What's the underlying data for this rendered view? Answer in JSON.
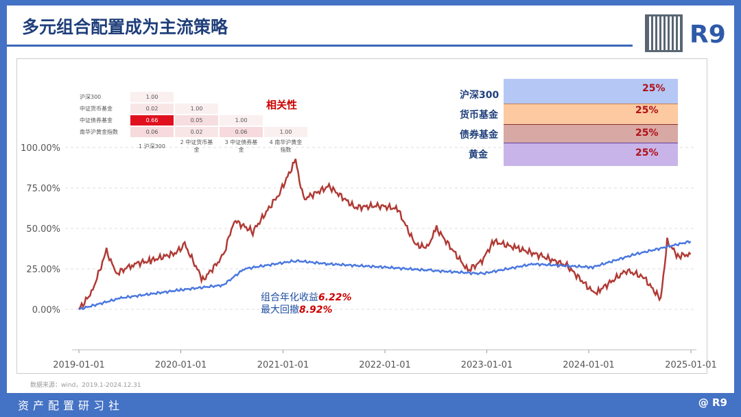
{
  "header": {
    "title": "多元组合配置成为主流策略",
    "logo": "R9"
  },
  "footer": {
    "left": "资产配置研习社",
    "right": "@ R9"
  },
  "source": "数据来源：wind，2019.1-2024.12.31",
  "annotation": {
    "return_label": "组合年化收益",
    "return_value": "6.22%",
    "drawdown_label": "最大回撤",
    "drawdown_value": "8.92%"
  },
  "correlation": {
    "title": "相关性",
    "rows": [
      "沪深300",
      "中证货币基金",
      "中证债券基金",
      "南华沪黄金指数"
    ],
    "cols": [
      "1 沪深300",
      "2 中证货币基金",
      "3 中证债券基金",
      "4 南华沪黄金指数"
    ],
    "values": [
      [
        "1.00",
        "",
        "",
        ""
      ],
      [
        "0.02",
        "1.00",
        "",
        ""
      ],
      [
        "0.66",
        "0.05",
        "1.00",
        ""
      ],
      [
        "0.06",
        "0.02",
        "0.06",
        "1.00"
      ]
    ]
  },
  "allocation": {
    "labels": [
      "沪深300",
      "货币基金",
      "债券基金",
      "黄金"
    ],
    "weights": [
      "25%",
      "25%",
      "25%",
      "25%"
    ],
    "colors": [
      "#b4c7f5",
      "#fcc9a0",
      "#d8a8a4",
      "#c8b4e8"
    ]
  },
  "chart_data": {
    "type": "line",
    "ylim": [
      0,
      100
    ],
    "yticks": [
      "0.00%",
      "25.00%",
      "50.00%",
      "75.00%",
      "100.00%"
    ],
    "xticks": [
      "2019-01-01",
      "2020-01-01",
      "2021-01-01",
      "2022-01-01",
      "2023-01-01",
      "2024-01-01",
      "2025-01-01"
    ],
    "grid": true,
    "series": [
      {
        "color": "#b03a35",
        "points": [
          [
            "2019-01-01",
            0
          ],
          [
            "2019-02-15",
            10
          ],
          [
            "2019-04-10",
            36
          ],
          [
            "2019-05-15",
            22
          ],
          [
            "2019-07-15",
            28
          ],
          [
            "2019-09-15",
            30
          ],
          [
            "2019-12-15",
            35
          ],
          [
            "2020-01-15",
            40
          ],
          [
            "2020-03-20",
            18
          ],
          [
            "2020-06-01",
            33
          ],
          [
            "2020-07-10",
            55
          ],
          [
            "2020-09-15",
            48
          ],
          [
            "2020-12-20",
            72
          ],
          [
            "2021-02-15",
            92
          ],
          [
            "2021-03-15",
            68
          ],
          [
            "2021-06-15",
            76
          ],
          [
            "2021-09-15",
            63
          ],
          [
            "2021-12-15",
            64
          ],
          [
            "2022-02-15",
            62
          ],
          [
            "2022-04-20",
            40
          ],
          [
            "2022-06-01",
            38
          ],
          [
            "2022-07-05",
            50
          ],
          [
            "2022-10-25",
            24
          ],
          [
            "2022-12-15",
            30
          ],
          [
            "2023-01-25",
            42
          ],
          [
            "2023-04-15",
            38
          ],
          [
            "2023-07-15",
            33
          ],
          [
            "2023-10-15",
            27
          ],
          [
            "2024-01-20",
            10
          ],
          [
            "2024-02-10",
            12
          ],
          [
            "2024-05-15",
            24
          ],
          [
            "2024-07-15",
            20
          ],
          [
            "2024-09-15",
            6
          ],
          [
            "2024-10-08",
            42
          ],
          [
            "2024-11-15",
            33
          ],
          [
            "2024-12-31",
            34
          ]
        ]
      },
      {
        "color": "#4a78e0",
        "points": [
          [
            "2019-01-01",
            0
          ],
          [
            "2019-06-01",
            7
          ],
          [
            "2020-01-01",
            12
          ],
          [
            "2020-06-01",
            15
          ],
          [
            "2020-08-15",
            25
          ],
          [
            "2021-02-15",
            30
          ],
          [
            "2021-06-15",
            28
          ],
          [
            "2022-01-01",
            26
          ],
          [
            "2022-06-15",
            24
          ],
          [
            "2022-12-15",
            22
          ],
          [
            "2023-06-15",
            28
          ],
          [
            "2024-01-15",
            26
          ],
          [
            "2024-06-15",
            34
          ],
          [
            "2024-12-31",
            42
          ]
        ]
      }
    ]
  }
}
